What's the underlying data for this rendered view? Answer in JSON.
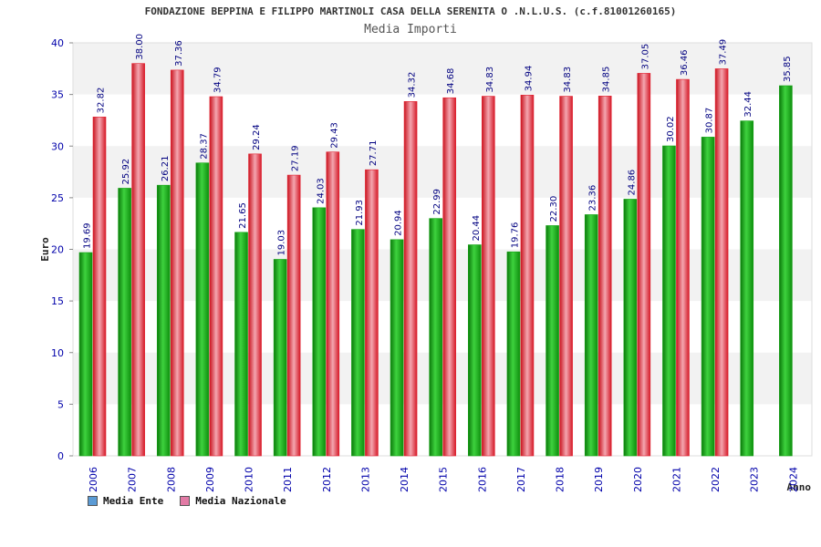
{
  "header": {
    "title": "FONDAZIONE BEPPINA E FILIPPO MARTINOLI CASA DELLA SERENITA O .N.L.U.S. (c.f.81001260165)",
    "subtitle": "Media Importi"
  },
  "legend": {
    "items": [
      {
        "label": "Media Ente",
        "color": "#5b9bd5"
      },
      {
        "label": "Media Nazionale",
        "color": "#e27aa5"
      }
    ]
  },
  "colors": {
    "ente_bar": "#13a313",
    "nazionale_bar": "#e3202f",
    "band": "#f2f2f2",
    "axis_text": "#0000aa",
    "value_text": "#000080"
  },
  "chart_data": {
    "type": "bar",
    "title": "Media Importi",
    "xlabel": "Anno",
    "ylabel": "Euro",
    "ylim": [
      0,
      40
    ],
    "yticks": [
      0,
      5,
      10,
      15,
      20,
      25,
      30,
      35,
      40
    ],
    "categories": [
      "2006",
      "2007",
      "2008",
      "2009",
      "2010",
      "2011",
      "2012",
      "2013",
      "2014",
      "2015",
      "2016",
      "2017",
      "2018",
      "2019",
      "2020",
      "2021",
      "2022",
      "2023",
      "2024"
    ],
    "series": [
      {
        "name": "Media Ente",
        "values": [
          19.69,
          25.92,
          26.21,
          28.37,
          21.65,
          19.03,
          24.03,
          21.93,
          20.94,
          22.99,
          20.44,
          19.76,
          22.3,
          23.36,
          24.86,
          30.02,
          30.87,
          32.44,
          35.85
        ],
        "labels": [
          "19.69",
          "25.92",
          "26.21",
          "28.37",
          "21.65",
          "19.03",
          "24.03",
          "21.93",
          "20.94",
          "22.99",
          "20.44",
          "19.76",
          "22.30",
          "23.36",
          "24.86",
          "30.02",
          "30.87",
          "32.44",
          "35.85"
        ]
      },
      {
        "name": "Media Nazionale",
        "values": [
          32.82,
          38.0,
          37.36,
          34.79,
          29.24,
          27.19,
          29.43,
          27.71,
          34.32,
          34.68,
          34.83,
          34.94,
          34.83,
          34.85,
          37.05,
          36.46,
          37.49,
          null,
          null
        ],
        "labels": [
          "32.82",
          "38.00",
          "37.36",
          "34.79",
          "29.24",
          "27.19",
          "29.43",
          "27.71",
          "34.32",
          "34.68",
          "34.83",
          "34.94",
          "34.83",
          "34.85",
          "37.05",
          "36.46",
          "37.49",
          "",
          ""
        ]
      }
    ],
    "grid": "alternating horizontal bands",
    "legend_position": "bottom-left"
  }
}
